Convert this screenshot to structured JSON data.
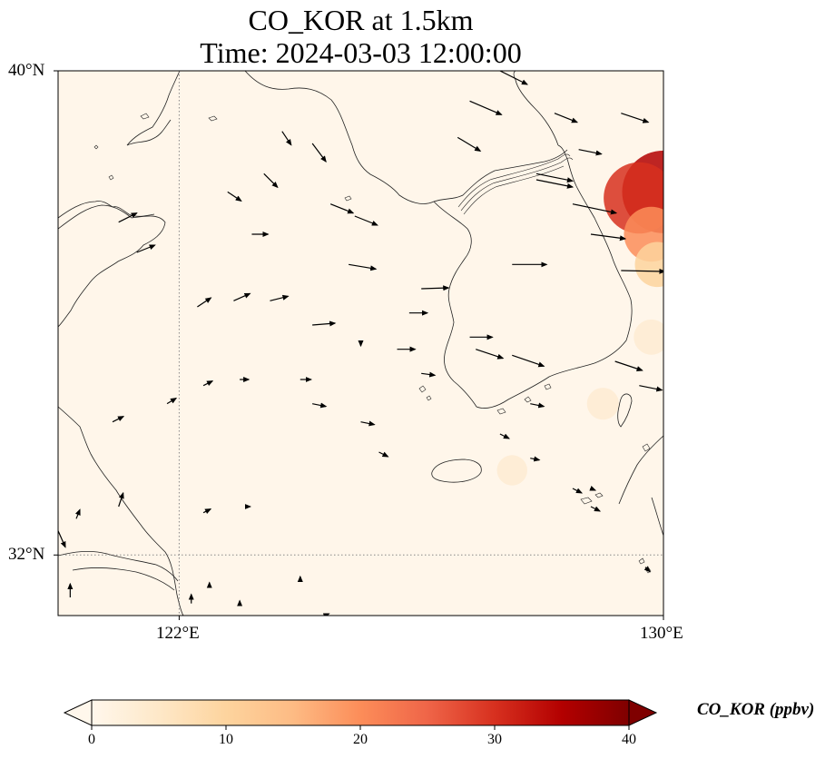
{
  "title": {
    "line1": "CO_KOR at 1.5km",
    "line2": "Time: 2024-03-03 12:00:00"
  },
  "map": {
    "lon_range": [
      120,
      130
    ],
    "lat_range": [
      31,
      40
    ],
    "lat_ticks": [
      {
        "value": 40,
        "label": "40°N"
      },
      {
        "value": 32,
        "label": "32°N"
      }
    ],
    "lon_ticks": [
      {
        "value": 122,
        "label": "122°E"
      },
      {
        "value": 130,
        "label": "130°E"
      }
    ],
    "gridlines": "dotted"
  },
  "colorbar": {
    "label": "CO_KOR (ppbv)",
    "min": 0,
    "max": 40,
    "ticks": [
      "0",
      "10",
      "20",
      "30",
      "40"
    ],
    "colormap": "OrRd",
    "extend": "both",
    "colors": [
      "#fff7ec",
      "#fee8c8",
      "#fdd49e",
      "#fdbb84",
      "#fc8d59",
      "#ef6548",
      "#d7301f",
      "#b30000",
      "#7f0000"
    ]
  },
  "chart_data": {
    "type": "heatmap",
    "variable": "CO_KOR",
    "unit": "ppbv",
    "hotspots": [
      {
        "lon": 130.0,
        "lat": 38.0,
        "value": 35
      },
      {
        "lon": 129.6,
        "lat": 37.9,
        "value": 28
      },
      {
        "lon": 129.8,
        "lat": 37.3,
        "value": 18
      },
      {
        "lon": 129.9,
        "lat": 36.8,
        "value": 12
      },
      {
        "lon": 129.8,
        "lat": 35.6,
        "value": 6
      },
      {
        "lon": 129.0,
        "lat": 34.5,
        "value": 4
      },
      {
        "lon": 127.5,
        "lat": 33.4,
        "value": 3
      }
    ],
    "wind_vectors": [
      {
        "lon": 127.3,
        "lat": 40.0,
        "u": 3.0,
        "v": -1.5
      },
      {
        "lon": 126.8,
        "lat": 39.5,
        "u": 3.5,
        "v": -1.5
      },
      {
        "lon": 128.2,
        "lat": 39.3,
        "u": 2.5,
        "v": -1.0
      },
      {
        "lon": 129.3,
        "lat": 39.3,
        "u": 3.0,
        "v": -1.0
      },
      {
        "lon": 126.6,
        "lat": 38.9,
        "u": 2.5,
        "v": -1.5
      },
      {
        "lon": 128.6,
        "lat": 38.7,
        "u": 2.5,
        "v": -0.5
      },
      {
        "lon": 127.9,
        "lat": 38.3,
        "u": 4.0,
        "v": -0.8
      },
      {
        "lon": 127.9,
        "lat": 38.2,
        "u": 4.0,
        "v": -0.8
      },
      {
        "lon": 128.5,
        "lat": 37.8,
        "u": 4.8,
        "v": -1.0
      },
      {
        "lon": 128.8,
        "lat": 37.3,
        "u": 3.8,
        "v": -0.5
      },
      {
        "lon": 129.3,
        "lat": 36.7,
        "u": 4.8,
        "v": -0.1
      },
      {
        "lon": 127.5,
        "lat": 36.8,
        "u": 3.8,
        "v": 0.0
      },
      {
        "lon": 126.0,
        "lat": 36.4,
        "u": 3.0,
        "v": 0.1
      },
      {
        "lon": 125.8,
        "lat": 36.0,
        "u": 2.0,
        "v": 0.0
      },
      {
        "lon": 126.9,
        "lat": 35.4,
        "u": 3.0,
        "v": -1.0
      },
      {
        "lon": 127.5,
        "lat": 35.3,
        "u": 3.5,
        "v": -1.2
      },
      {
        "lon": 129.2,
        "lat": 35.2,
        "u": 3.0,
        "v": -1.0
      },
      {
        "lon": 129.6,
        "lat": 34.8,
        "u": 2.5,
        "v": -0.5
      },
      {
        "lon": 124.2,
        "lat": 38.8,
        "u": 1.5,
        "v": -2.0
      },
      {
        "lon": 123.7,
        "lat": 39.0,
        "u": 1.0,
        "v": -1.5
      },
      {
        "lon": 124.5,
        "lat": 37.8,
        "u": 2.5,
        "v": -1.0
      },
      {
        "lon": 124.9,
        "lat": 37.6,
        "u": 2.5,
        "v": -1.0
      },
      {
        "lon": 123.4,
        "lat": 38.3,
        "u": 1.5,
        "v": -1.5
      },
      {
        "lon": 122.8,
        "lat": 38.0,
        "u": 1.5,
        "v": -1.0
      },
      {
        "lon": 121.0,
        "lat": 37.5,
        "u": 2.0,
        "v": 1.0
      },
      {
        "lon": 121.3,
        "lat": 37.0,
        "u": 2.0,
        "v": 0.8
      },
      {
        "lon": 122.3,
        "lat": 36.1,
        "u": 1.5,
        "v": 1.0
      },
      {
        "lon": 122.9,
        "lat": 36.2,
        "u": 1.8,
        "v": 0.8
      },
      {
        "lon": 123.5,
        "lat": 36.2,
        "u": 2.0,
        "v": 0.5
      },
      {
        "lon": 124.2,
        "lat": 35.8,
        "u": 2.5,
        "v": 0.2
      },
      {
        "lon": 124.8,
        "lat": 36.8,
        "u": 3.0,
        "v": -0.5
      },
      {
        "lon": 123.2,
        "lat": 37.3,
        "u": 1.8,
        "v": 0.0
      },
      {
        "lon": 125.6,
        "lat": 35.4,
        "u": 2.0,
        "v": 0.0
      },
      {
        "lon": 125.0,
        "lat": 34.2,
        "u": 1.5,
        "v": -0.3
      },
      {
        "lon": 124.2,
        "lat": 34.5,
        "u": 1.5,
        "v": -0.3
      },
      {
        "lon": 125.3,
        "lat": 33.7,
        "u": 1.0,
        "v": -0.5
      },
      {
        "lon": 124.0,
        "lat": 34.9,
        "u": 1.2,
        "v": 0.0
      },
      {
        "lon": 123.0,
        "lat": 34.9,
        "u": 1.0,
        "v": 0.0
      },
      {
        "lon": 122.4,
        "lat": 34.8,
        "u": 1.0,
        "v": 0.5
      },
      {
        "lon": 121.8,
        "lat": 34.5,
        "u": 1.0,
        "v": 0.6
      },
      {
        "lon": 120.9,
        "lat": 34.2,
        "u": 1.2,
        "v": 0.6
      },
      {
        "lon": 123.1,
        "lat": 32.8,
        "u": 0.5,
        "v": 0.0
      },
      {
        "lon": 122.4,
        "lat": 32.7,
        "u": 0.8,
        "v": 0.4
      },
      {
        "lon": 121.0,
        "lat": 32.8,
        "u": 0.5,
        "v": 1.5
      },
      {
        "lon": 120.3,
        "lat": 32.6,
        "u": 0.4,
        "v": 1.0
      },
      {
        "lon": 120.0,
        "lat": 32.4,
        "u": 0.8,
        "v": -1.8
      },
      {
        "lon": 120.2,
        "lat": 31.3,
        "u": 0.0,
        "v": 1.5
      },
      {
        "lon": 122.2,
        "lat": 31.2,
        "u": 0.0,
        "v": 1.0
      },
      {
        "lon": 122.5,
        "lat": 31.5,
        "u": 0.0,
        "v": 0.3
      },
      {
        "lon": 123.0,
        "lat": 31.2,
        "u": 0.0,
        "v": 0.3
      },
      {
        "lon": 124.0,
        "lat": 31.6,
        "u": 0.0,
        "v": 0.3
      },
      {
        "lon": 124.4,
        "lat": 31.0,
        "u": 0.5,
        "v": 0.2
      },
      {
        "lon": 127.8,
        "lat": 33.6,
        "u": 1.0,
        "v": -0.2
      },
      {
        "lon": 128.5,
        "lat": 33.1,
        "u": 1.0,
        "v": -0.5
      },
      {
        "lon": 128.8,
        "lat": 32.8,
        "u": 1.0,
        "v": -0.5
      },
      {
        "lon": 129.7,
        "lat": 31.8,
        "u": 0.5,
        "v": -0.5
      },
      {
        "lon": 128.8,
        "lat": 33.1,
        "u": 0.5,
        "v": -0.2
      },
      {
        "lon": 127.3,
        "lat": 34.0,
        "u": 1.0,
        "v": -0.5
      },
      {
        "lon": 127.8,
        "lat": 34.5,
        "u": 1.5,
        "v": -0.3
      },
      {
        "lon": 126.8,
        "lat": 35.6,
        "u": 2.5,
        "v": 0.0
      },
      {
        "lon": 126.0,
        "lat": 35.0,
        "u": 1.5,
        "v": -0.2
      },
      {
        "lon": 125.0,
        "lat": 35.5,
        "u": 0.0,
        "v": -0.3
      }
    ]
  }
}
